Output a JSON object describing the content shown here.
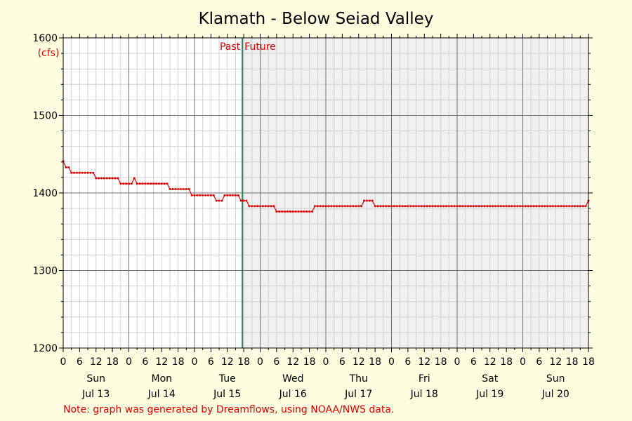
{
  "chart_data": {
    "type": "line",
    "title": "Klamath - Below Seiad Valley",
    "ylabel": "(cfs)",
    "ylim": [
      1200,
      1600
    ],
    "y_ticks": [
      "1200",
      "1300",
      "1400",
      "1500",
      "1600"
    ],
    "x_range_hours": [
      0,
      192
    ],
    "x_hour_ticks": [
      "0",
      "6",
      "12",
      "18",
      "0",
      "6",
      "12",
      "18",
      "0",
      "6",
      "12",
      "18",
      "0",
      "6",
      "12",
      "18",
      "0",
      "6",
      "12",
      "18",
      "0",
      "6",
      "12",
      "18",
      "0",
      "6",
      "12",
      "18",
      "0",
      "6",
      "12",
      "18",
      "18"
    ],
    "days": [
      {
        "day": "Sun",
        "date": "Jul 13"
      },
      {
        "day": "Mon",
        "date": "Jul 14"
      },
      {
        "day": "Tue",
        "date": "Jul 15"
      },
      {
        "day": "Wed",
        "date": "Jul 16"
      },
      {
        "day": "Thu",
        "date": "Jul 17"
      },
      {
        "day": "Fri",
        "date": "Jul 18"
      },
      {
        "day": "Sat",
        "date": "Jul 19"
      },
      {
        "day": "Sun",
        "date": "Jul 20"
      }
    ],
    "now_hour": 65.5,
    "past_label": "Past",
    "future_label": "Future",
    "line_color": "#e00000",
    "future_shade_color": "#f0f0f0",
    "now_line_color": "#2e7d5b",
    "grid": true,
    "series": [
      {
        "points": [
          [
            0,
            1441
          ],
          [
            1,
            1433
          ],
          [
            3,
            1426
          ],
          [
            11,
            1426
          ],
          [
            12,
            1419
          ],
          [
            20,
            1419
          ],
          [
            21,
            1412
          ],
          [
            25,
            1412
          ],
          [
            26,
            1419
          ],
          [
            27,
            1412
          ],
          [
            38,
            1412
          ],
          [
            39,
            1405
          ],
          [
            46,
            1405
          ],
          [
            47,
            1397
          ],
          [
            55,
            1397
          ],
          [
            56,
            1390
          ],
          [
            58,
            1390
          ],
          [
            59,
            1397
          ],
          [
            64,
            1397
          ],
          [
            65,
            1390
          ],
          [
            67,
            1390
          ],
          [
            68,
            1383
          ],
          [
            77,
            1383
          ],
          [
            78,
            1376
          ],
          [
            91,
            1376
          ],
          [
            92,
            1383
          ],
          [
            109,
            1383
          ],
          [
            110,
            1390
          ],
          [
            113,
            1390
          ],
          [
            114,
            1383
          ],
          [
            191,
            1383
          ],
          [
            192,
            1390
          ]
        ]
      }
    ]
  },
  "footer_note": "Note: graph was generated by Dreamflows, using NOAA/NWS data."
}
